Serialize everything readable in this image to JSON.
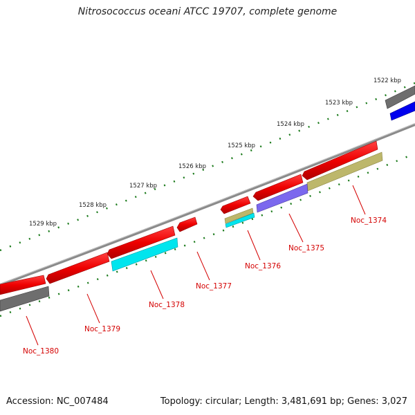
{
  "title": "Nitrosococcus oceani ATCC 19707, complete genome",
  "footer": {
    "accession": "Accession: NC_007484",
    "summary": "Topology: circular; Length: 3,481,691 bp; Genes: 3,027"
  },
  "ruler_labels": [
    "1522 kbp",
    "1523 kbp",
    "1524 kbp",
    "1525 kbp",
    "1526 kbp",
    "1527 kbp",
    "1528 kbp",
    "1529 kbp"
  ],
  "gene_labels": [
    "Noc_1374",
    "Noc_1375",
    "Noc_1376",
    "Noc_1377",
    "Noc_1378",
    "Noc_1379",
    "Noc_1380"
  ],
  "colors": {
    "gene_label": "#d40000",
    "ticks": "#1a7a1a",
    "backbone": "#8a8a8a",
    "cds": "#ee0000",
    "cyan": "#00e5ee",
    "khaki": "#bdb76b",
    "slate": "#7b68ee",
    "gray": "#6e6e6e",
    "blue": "#0000ee"
  }
}
